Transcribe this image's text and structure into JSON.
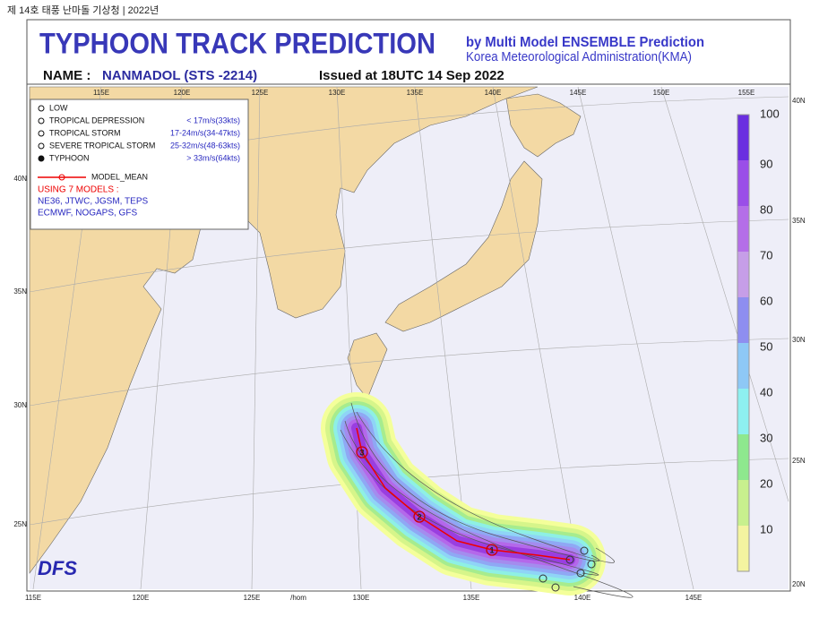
{
  "caption": "제 14호 태풍 난마돌 기상청 | 2022년",
  "header": {
    "title": "TYPHOON TRACK PREDICTION",
    "subtitle_1": "by Multi Model ENSEMBLE Prediction",
    "subtitle_2": "Korea Meteorological Administration(KMA)",
    "name_label": "NAME :",
    "name": "NANMADOL (STS -2214)",
    "issued": "Issued at 18UTC 14 Sep 2022"
  },
  "map": {
    "top_lon_labels": [
      "115E",
      "120E",
      "125E",
      "130E",
      "135E",
      "140E",
      "145E",
      "150E",
      "155E"
    ],
    "bottom_lon_labels": [
      "115E",
      "120E",
      "125E",
      "/hom",
      "130E",
      "135E",
      "140E",
      "145E"
    ],
    "left_lat_labels": [
      "40N",
      "35N",
      "30N",
      "25N"
    ],
    "right_lat_labels": [
      "40N",
      "35N",
      "30N",
      "25N",
      "20N"
    ],
    "track_labels": [
      "3",
      "2",
      "1"
    ],
    "logo": "DFS"
  },
  "legend": {
    "items": [
      {
        "label": "LOW"
      },
      {
        "label": "TROPICAL DEPRESSION",
        "range": "< 17m/s(33kts)"
      },
      {
        "label": "TROPICAL STORM",
        "range": "17-24m/s(34-47kts)"
      },
      {
        "label": "SEVERE TROPICAL STORM",
        "range": "25-32m/s(48-63kts)"
      },
      {
        "label": "TYPHOON",
        "range": "> 33m/s(64kts)"
      }
    ],
    "mean_label": "MODEL_MEAN",
    "models_title": "USING 7 MODELS :",
    "models_1": "NE36, JTWC, JGSM, TEPS",
    "models_2": "ECMWF, NOGAPS, GFS"
  },
  "colorbar": {
    "labels": [
      100,
      90,
      80,
      70,
      60,
      50,
      40,
      30,
      20,
      10
    ]
  }
}
